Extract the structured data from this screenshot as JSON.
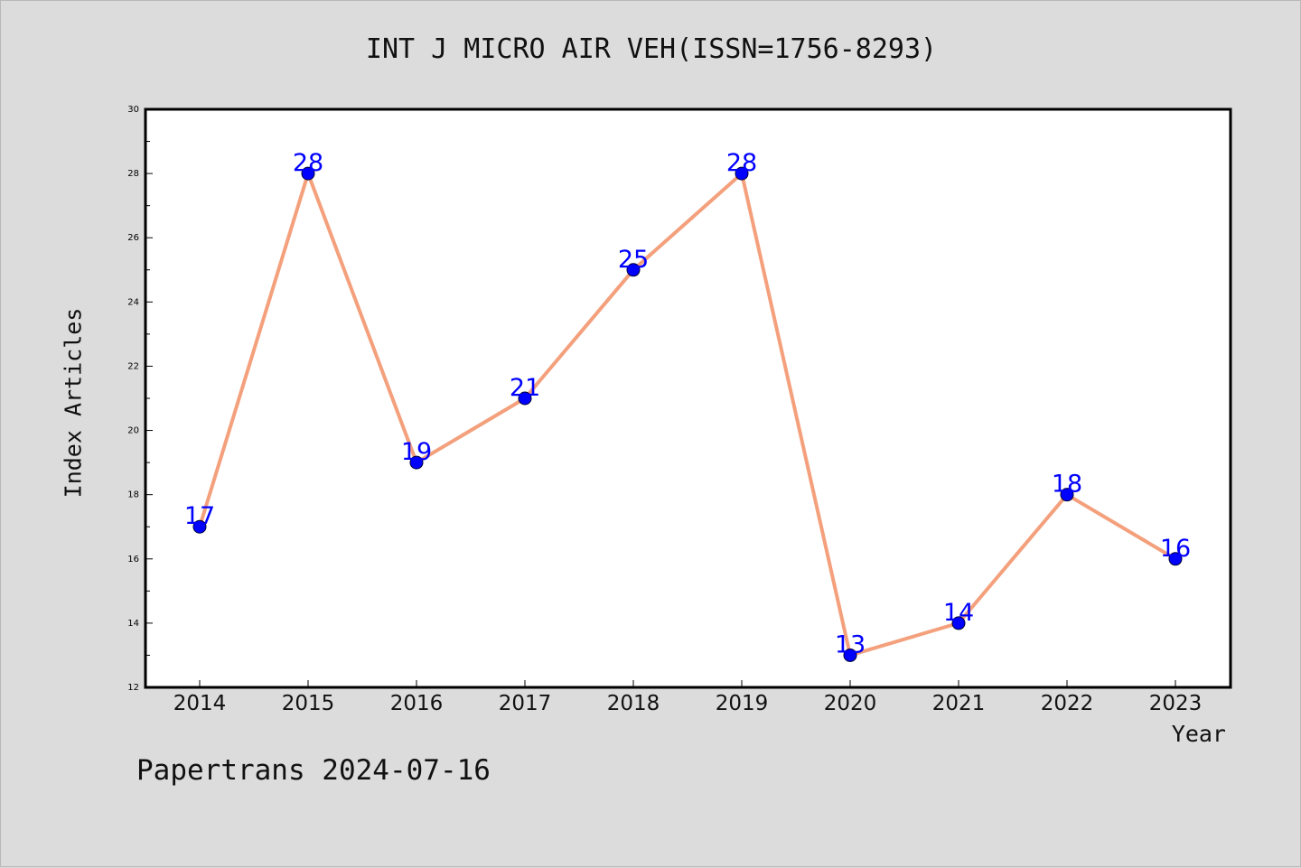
{
  "title": "INT J MICRO AIR VEH(ISSN=1756-8293)",
  "footer": "Papertrans 2024-07-16",
  "colors": {
    "background": "#dcdcdc",
    "plot_background": "#ffffff",
    "line": "#f4a07c",
    "marker": "#0000ff",
    "label": "#0000ff"
  },
  "chart_data": {
    "type": "line",
    "title": "INT J MICRO AIR VEH(ISSN=1756-8293)",
    "xlabel": "Year",
    "ylabel": "Index Articles",
    "ylim": [
      12,
      30
    ],
    "yticks": [
      12,
      14,
      16,
      18,
      20,
      22,
      24,
      26,
      28,
      30
    ],
    "grid": false,
    "legend": "none",
    "categories": [
      "2014",
      "2015",
      "2016",
      "2017",
      "2018",
      "2019",
      "2020",
      "2021",
      "2022",
      "2023"
    ],
    "series": [
      {
        "values": [
          17,
          28,
          19,
          21,
          25,
          28,
          13,
          14,
          18,
          16
        ]
      }
    ]
  }
}
